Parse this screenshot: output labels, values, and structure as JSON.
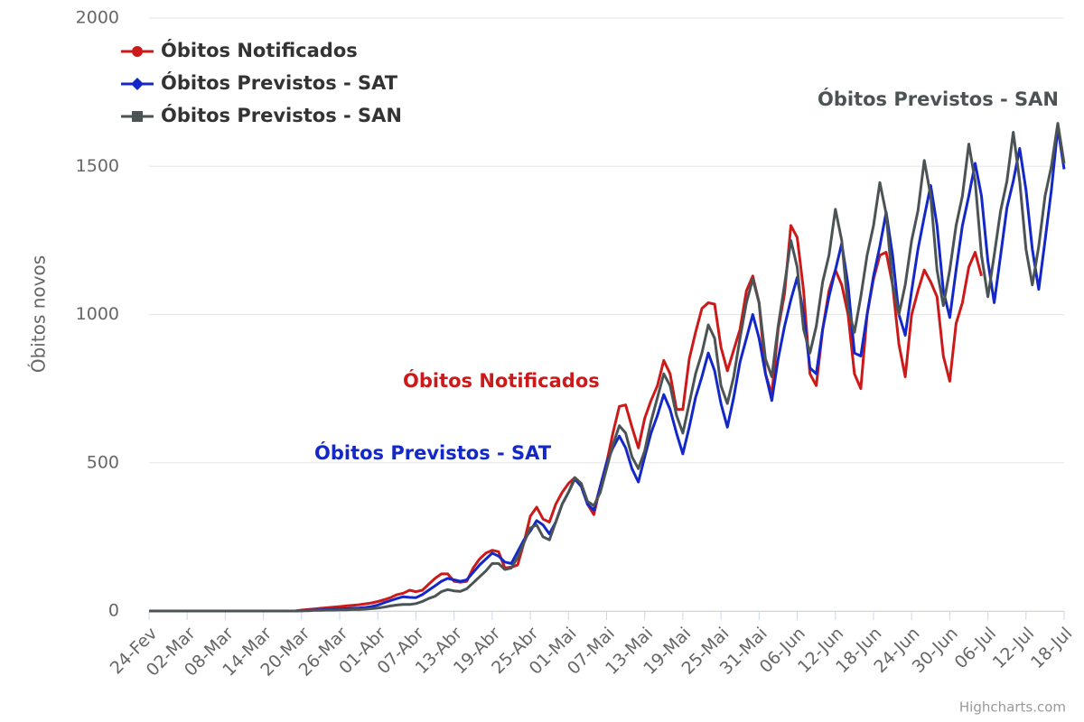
{
  "chart_data": {
    "type": "line",
    "y_label": "Óbitos novos",
    "credit": "Highcharts.com",
    "categories": [
      "24-Fev",
      null,
      null,
      null,
      null,
      null,
      "02-Mar",
      null,
      null,
      null,
      null,
      null,
      "08-Mar",
      null,
      null,
      null,
      null,
      null,
      "14-Mar",
      null,
      null,
      null,
      null,
      null,
      "20-Mar",
      null,
      null,
      null,
      null,
      null,
      "26-Mar",
      null,
      null,
      null,
      null,
      null,
      "01-Abr",
      null,
      null,
      null,
      null,
      null,
      "07-Abr",
      null,
      null,
      null,
      null,
      null,
      "13-Abr",
      null,
      null,
      null,
      null,
      null,
      "19-Abr",
      null,
      null,
      null,
      null,
      null,
      "25-Abr",
      null,
      null,
      null,
      null,
      null,
      "01-Mai",
      null,
      null,
      null,
      null,
      null,
      "07-Mai",
      null,
      null,
      null,
      null,
      null,
      "13-Mai",
      null,
      null,
      null,
      null,
      null,
      "19-Mai",
      null,
      null,
      null,
      null,
      null,
      "25-Mai",
      null,
      null,
      null,
      null,
      null,
      "31-Mai",
      null,
      null,
      null,
      null,
      null,
      "06-Jun",
      null,
      null,
      null,
      null,
      null,
      "12-Jun",
      null,
      null,
      null,
      null,
      null,
      "18-Jun",
      null,
      null,
      null,
      null,
      null,
      "24-Jun",
      null,
      null,
      null,
      null,
      null,
      "30-Jun",
      null,
      null,
      null,
      null,
      null,
      "06-Jul",
      null,
      null,
      null,
      null,
      null,
      "12-Jul",
      null,
      null,
      null,
      null,
      null,
      "18-Jul"
    ],
    "series": [
      {
        "name": "Óbitos Notificados",
        "color": "#cc1a1a",
        "marker": "circle",
        "values": [
          0,
          0,
          0,
          0,
          0,
          0,
          0,
          0,
          0,
          0,
          0,
          0,
          0,
          0,
          0,
          0,
          0,
          0,
          0,
          0,
          0,
          0,
          0,
          0,
          3,
          5,
          7,
          9,
          11,
          13,
          15,
          17,
          19,
          21,
          24,
          27,
          32,
          38,
          45,
          55,
          60,
          70,
          65,
          70,
          90,
          110,
          125,
          125,
          100,
          97,
          100,
          145,
          175,
          195,
          205,
          200,
          145,
          148,
          155,
          230,
          320,
          350,
          310,
          300,
          360,
          400,
          430,
          450,
          430,
          360,
          325,
          420,
          500,
          600,
          690,
          695,
          620,
          550,
          650,
          710,
          760,
          845,
          800,
          680,
          680,
          850,
          940,
          1020,
          1040,
          1035,
          890,
          810,
          880,
          950,
          1080,
          1130,
          1040,
          800,
          730,
          950,
          1070,
          1300,
          1260,
          1080,
          800,
          760,
          950,
          1080,
          1150,
          1100,
          1000,
          800,
          750,
          1000,
          1120,
          1200,
          1210,
          1100,
          900,
          790,
          1000,
          1080,
          1150,
          1110,
          1060,
          860,
          775,
          970,
          1040,
          1160,
          1210,
          1130,
          null,
          null,
          null,
          null,
          null,
          null,
          null,
          null,
          null,
          null,
          null,
          null,
          null
        ]
      },
      {
        "name": "Óbitos Previstos - SAT",
        "color": "#1428c8",
        "marker": "diamond",
        "values": [
          0,
          0,
          0,
          0,
          0,
          0,
          0,
          0,
          0,
          0,
          0,
          0,
          0,
          0,
          0,
          0,
          0,
          0,
          0,
          0,
          0,
          0,
          0,
          0,
          1,
          2,
          3,
          4,
          5,
          6,
          7,
          8,
          9,
          10,
          12,
          15,
          20,
          28,
          35,
          42,
          48,
          46,
          45,
          55,
          70,
          85,
          100,
          110,
          105,
          100,
          105,
          130,
          155,
          175,
          195,
          185,
          165,
          160,
          200,
          240,
          270,
          305,
          290,
          260,
          300,
          360,
          400,
          445,
          420,
          360,
          340,
          420,
          500,
          550,
          590,
          550,
          480,
          435,
          520,
          600,
          660,
          730,
          680,
          600,
          530,
          620,
          720,
          790,
          870,
          810,
          700,
          620,
          720,
          840,
          920,
          1000,
          920,
          800,
          710,
          850,
          960,
          1050,
          1125,
          1000,
          820,
          800,
          950,
          1060,
          1150,
          1240,
          1100,
          870,
          860,
          1000,
          1130,
          1230,
          1345,
          1200,
          1000,
          930,
          1080,
          1220,
          1330,
          1435,
          1300,
          1080,
          990,
          1150,
          1300,
          1400,
          1510,
          1400,
          1180,
          1040,
          1200,
          1360,
          1450,
          1560,
          1420,
          1220,
          1085,
          1250,
          1420,
          1630,
          1490
        ]
      },
      {
        "name": "Óbitos Previstos - SAN",
        "color": "#4b5355",
        "marker": "square",
        "values": [
          0,
          0,
          0,
          0,
          0,
          0,
          0,
          0,
          0,
          0,
          0,
          0,
          0,
          0,
          0,
          0,
          0,
          0,
          0,
          0,
          0,
          0,
          0,
          0,
          1,
          1,
          2,
          2,
          3,
          3,
          4,
          4,
          5,
          5,
          6,
          8,
          10,
          13,
          17,
          20,
          22,
          22,
          25,
          32,
          42,
          50,
          65,
          72,
          68,
          66,
          75,
          95,
          115,
          135,
          160,
          160,
          140,
          145,
          180,
          230,
          280,
          290,
          250,
          240,
          300,
          360,
          400,
          450,
          430,
          370,
          355,
          400,
          480,
          560,
          625,
          600,
          520,
          480,
          540,
          640,
          720,
          800,
          760,
          660,
          600,
          700,
          800,
          870,
          965,
          920,
          760,
          700,
          790,
          920,
          1040,
          1120,
          1040,
          850,
          790,
          960,
          1100,
          1250,
          1160,
          950,
          870,
          960,
          1110,
          1200,
          1355,
          1250,
          1020,
          940,
          1060,
          1200,
          1300,
          1445,
          1340,
          1100,
          1000,
          1100,
          1250,
          1350,
          1520,
          1400,
          1150,
          1030,
          1150,
          1300,
          1400,
          1575,
          1450,
          1200,
          1060,
          1200,
          1350,
          1450,
          1615,
          1450,
          1220,
          1100,
          1230,
          1400,
          1500,
          1645,
          1510
        ]
      }
    ],
    "annotations": [
      {
        "text": "Óbitos Previstos - SAN",
        "color": "#4b5355"
      },
      {
        "text": "Óbitos Notificados",
        "color": "#cc1a1a"
      },
      {
        "text": "Óbitos Previstos - SAT",
        "color": "#1428c8"
      }
    ],
    "ylim": [
      0,
      2000
    ],
    "yticks": [
      0,
      500,
      1000,
      1500,
      2000
    ],
    "grid": true,
    "legend": "top-left"
  }
}
